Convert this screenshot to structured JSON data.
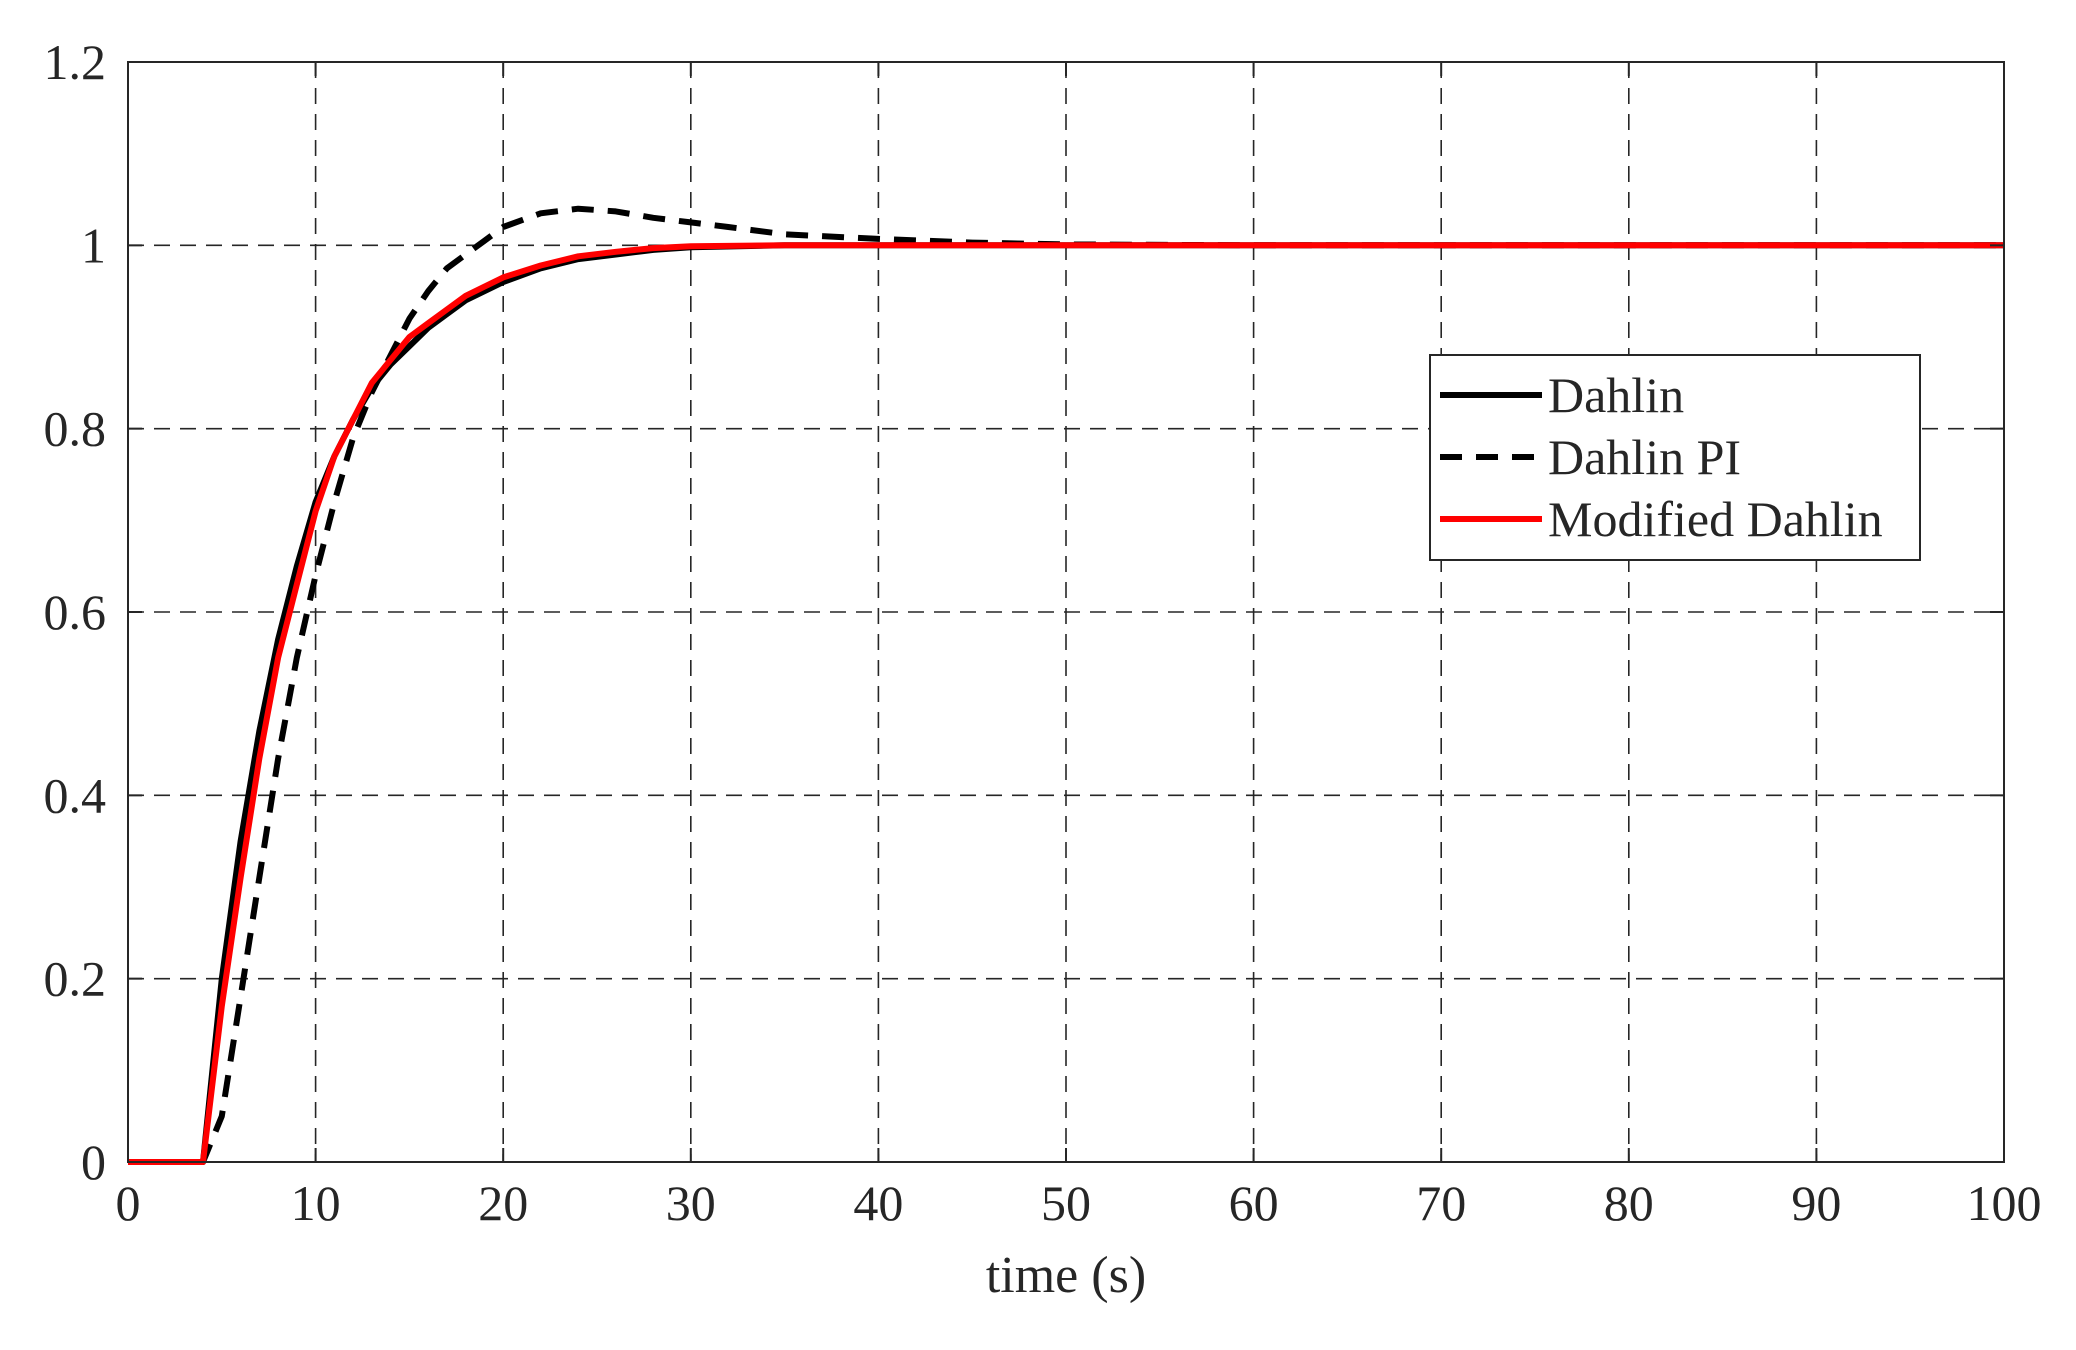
{
  "chart_data": {
    "type": "line",
    "title": "",
    "xlabel": "time (s)",
    "ylabel": "",
    "xlim": [
      0,
      100
    ],
    "ylim": [
      0,
      1.2
    ],
    "xticks": [
      0,
      10,
      20,
      30,
      40,
      50,
      60,
      70,
      80,
      90,
      100
    ],
    "yticks": [
      0,
      0.2,
      0.4,
      0.6,
      0.8,
      1,
      1.2
    ],
    "grid": true,
    "legend_position": "right",
    "series": [
      {
        "name": "Dahlin",
        "color": "#000000",
        "style": "solid",
        "x": [
          0,
          4,
          5,
          6,
          7,
          8,
          9,
          10,
          11,
          12,
          13,
          14,
          15,
          16,
          17,
          18,
          20,
          22,
          24,
          26,
          28,
          30,
          35,
          40,
          50,
          100
        ],
        "y": [
          0,
          0,
          0.2,
          0.35,
          0.47,
          0.57,
          0.65,
          0.72,
          0.77,
          0.81,
          0.845,
          0.87,
          0.89,
          0.91,
          0.925,
          0.94,
          0.96,
          0.975,
          0.985,
          0.99,
          0.995,
          0.998,
          1.0,
          1.0,
          1.0,
          1.0
        ]
      },
      {
        "name": "Dahlin PI",
        "color": "#000000",
        "style": "dashed",
        "x": [
          0,
          4,
          5,
          6,
          7,
          8,
          9,
          10,
          11,
          12,
          13,
          14,
          15,
          16,
          17,
          18,
          19,
          20,
          22,
          24,
          26,
          28,
          30,
          32,
          35,
          40,
          45,
          50,
          60,
          100
        ],
        "y": [
          0,
          0,
          0.05,
          0.18,
          0.31,
          0.44,
          0.55,
          0.64,
          0.72,
          0.79,
          0.84,
          0.88,
          0.92,
          0.95,
          0.975,
          0.99,
          1.005,
          1.02,
          1.035,
          1.04,
          1.037,
          1.03,
          1.025,
          1.02,
          1.012,
          1.007,
          1.003,
          1.001,
          1.0,
          1.0
        ]
      },
      {
        "name": "Modified Dahlin",
        "color": "#ff0000",
        "style": "solid",
        "x": [
          0,
          4,
          5,
          6,
          7,
          8,
          9,
          10,
          11,
          12,
          13,
          14,
          15,
          16,
          17,
          18,
          20,
          22,
          24,
          26,
          28,
          30,
          35,
          40,
          50,
          100
        ],
        "y": [
          0,
          0,
          0.17,
          0.31,
          0.44,
          0.55,
          0.63,
          0.71,
          0.77,
          0.81,
          0.85,
          0.875,
          0.9,
          0.915,
          0.93,
          0.945,
          0.965,
          0.978,
          0.988,
          0.993,
          0.997,
          0.999,
          1.0,
          1.0,
          1.0,
          1.0
        ]
      }
    ]
  }
}
